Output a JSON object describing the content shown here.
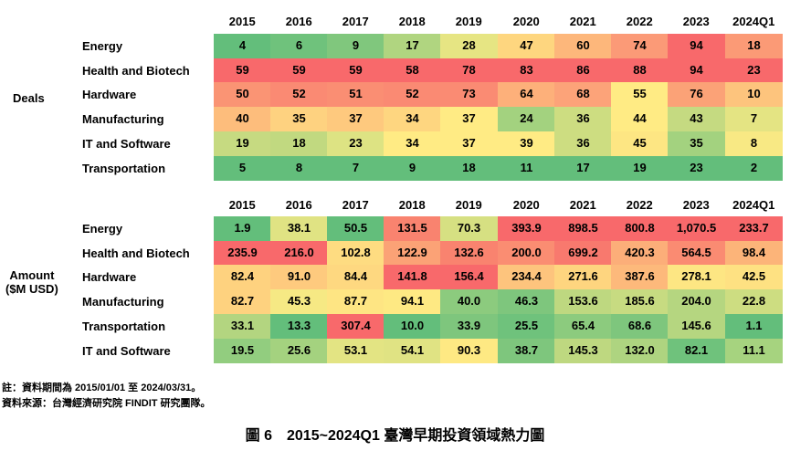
{
  "chart_data": [
    {
      "type": "heatmap",
      "y_group_label": "Deals",
      "columns": [
        "2015",
        "2016",
        "2017",
        "2018",
        "2019",
        "2020",
        "2021",
        "2022",
        "2023",
        "2024Q1"
      ],
      "rows": [
        {
          "label": "Energy",
          "values": [
            "4",
            "6",
            "9",
            "17",
            "28",
            "47",
            "60",
            "74",
            "94",
            "18"
          ],
          "colors": [
            "#63be7b",
            "#6fc27c",
            "#80c77d",
            "#b0d580",
            "#e6e583",
            "#fed67f",
            "#fdb77b",
            "#fb9a77",
            "#f8696b",
            "#fb9a76"
          ]
        },
        {
          "label": "Health and Biotech",
          "values": [
            "59",
            "59",
            "59",
            "58",
            "78",
            "83",
            "86",
            "88",
            "94",
            "23"
          ],
          "colors": [
            "#f8696b",
            "#f8696b",
            "#f8696b",
            "#f8696b",
            "#f8696b",
            "#f8696b",
            "#f8696b",
            "#f8696b",
            "#f8696b",
            "#f8696b"
          ]
        },
        {
          "label": "Hardware",
          "values": [
            "50",
            "52",
            "51",
            "52",
            "73",
            "64",
            "68",
            "55",
            "76",
            "10"
          ],
          "colors": [
            "#fa9474",
            "#fa8a73",
            "#fa8e73",
            "#fa8a73",
            "#fa8b73",
            "#fdb07a",
            "#fca379",
            "#ffeb84",
            "#fba277",
            "#fdc47d"
          ]
        },
        {
          "label": "Manufacturing",
          "values": [
            "40",
            "35",
            "37",
            "34",
            "37",
            "24",
            "36",
            "44",
            "43",
            "7"
          ],
          "colors": [
            "#fdbd7c",
            "#fed280",
            "#fec97e",
            "#fed680",
            "#ffeb84",
            "#a3d27f",
            "#cddd81",
            "#ffeb84",
            "#c5da81",
            "#e4e483"
          ]
        },
        {
          "label": "IT and Software",
          "values": [
            "19",
            "18",
            "23",
            "34",
            "37",
            "39",
            "36",
            "45",
            "35",
            "8"
          ],
          "colors": [
            "#c6da81",
            "#c1d980",
            "#dde383",
            "#ffeb84",
            "#ffeb84",
            "#ffeb84",
            "#cddd81",
            "#fde683",
            "#a3d27f",
            "#f8e984"
          ]
        },
        {
          "label": "Transportation",
          "values": [
            "5",
            "8",
            "7",
            "9",
            "18",
            "11",
            "17",
            "19",
            "23",
            "2"
          ],
          "colors": [
            "#63be7b",
            "#63be7b",
            "#63be7b",
            "#63be7b",
            "#63be7b",
            "#63be7b",
            "#63be7b",
            "#63be7b",
            "#63be7b",
            "#63be7b"
          ]
        }
      ]
    },
    {
      "type": "heatmap",
      "y_group_label": "Amount\n($M USD)",
      "columns": [
        "2015",
        "2016",
        "2017",
        "2018",
        "2019",
        "2020",
        "2021",
        "2022",
        "2023",
        "2024Q1"
      ],
      "rows": [
        {
          "label": "Energy",
          "values": [
            "1.9",
            "38.1",
            "50.5",
            "131.5",
            "70.3",
            "393.9",
            "898.5",
            "800.8",
            "1,070.5",
            "233.7"
          ],
          "colors": [
            "#63be7b",
            "#e0e383",
            "#63be7b",
            "#f9836f",
            "#d6e082",
            "#f8696b",
            "#f8696b",
            "#f8696b",
            "#f8696b",
            "#f8696b"
          ]
        },
        {
          "label": "Health and Biotech",
          "values": [
            "235.9",
            "216.0",
            "102.8",
            "122.9",
            "132.6",
            "200.0",
            "699.2",
            "420.3",
            "564.5",
            "98.4"
          ],
          "colors": [
            "#f8696b",
            "#f8696b",
            "#fedc81",
            "#fba276",
            "#f9836f",
            "#fa8d72",
            "#f8796e",
            "#fcae79",
            "#fa8b72",
            "#fcb479"
          ]
        },
        {
          "label": "Hardware",
          "values": [
            "82.4",
            "91.0",
            "84.4",
            "141.8",
            "156.4",
            "234.4",
            "271.6",
            "387.6",
            "278.1",
            "42.5"
          ],
          "colors": [
            "#fed27f",
            "#feca7e",
            "#fed880",
            "#f8696b",
            "#f8696b",
            "#fdc47d",
            "#fed57f",
            "#fdb97b",
            "#fde683",
            "#fee182"
          ]
        },
        {
          "label": "Manufacturing",
          "values": [
            "82.7",
            "45.3",
            "87.7",
            "94.1",
            "40.0",
            "46.3",
            "153.6",
            "185.6",
            "204.0",
            "22.8"
          ],
          "colors": [
            "#fed27f",
            "#f6e984",
            "#fee583",
            "#fee983",
            "#8ccb7e",
            "#7ec67d",
            "#bed880",
            "#c7db81",
            "#b5d680",
            "#cddd81"
          ]
        },
        {
          "label": "Transportation",
          "values": [
            "33.1",
            "13.3",
            "307.4",
            "10.0",
            "33.9",
            "25.5",
            "65.4",
            "68.6",
            "145.6",
            "1.1"
          ],
          "colors": [
            "#b3d580",
            "#63be7b",
            "#f8696b",
            "#63be7b",
            "#7ec67d",
            "#6fc27c",
            "#8ccb7e",
            "#7ec67d",
            "#b5d680",
            "#63be7b"
          ]
        },
        {
          "label": "IT and Software",
          "values": [
            "19.5",
            "25.6",
            "53.1",
            "54.1",
            "90.3",
            "38.7",
            "145.3",
            "132.0",
            "82.1",
            "11.1"
          ],
          "colors": [
            "#92cd7f",
            "#a4d27f",
            "#e3e483",
            "#e0e383",
            "#fee983",
            "#7ec67d",
            "#bed880",
            "#aed480",
            "#6fc27c",
            "#a6d37f"
          ]
        }
      ]
    }
  ],
  "notes": [
    "註：資料期間為 2015/01/01 至 2024/03/31。",
    "資料來源：台灣經濟研究院 FINDIT 研究團隊。"
  ],
  "caption": "圖 6　2015~2024Q1 臺灣早期投資領域熱力圖"
}
